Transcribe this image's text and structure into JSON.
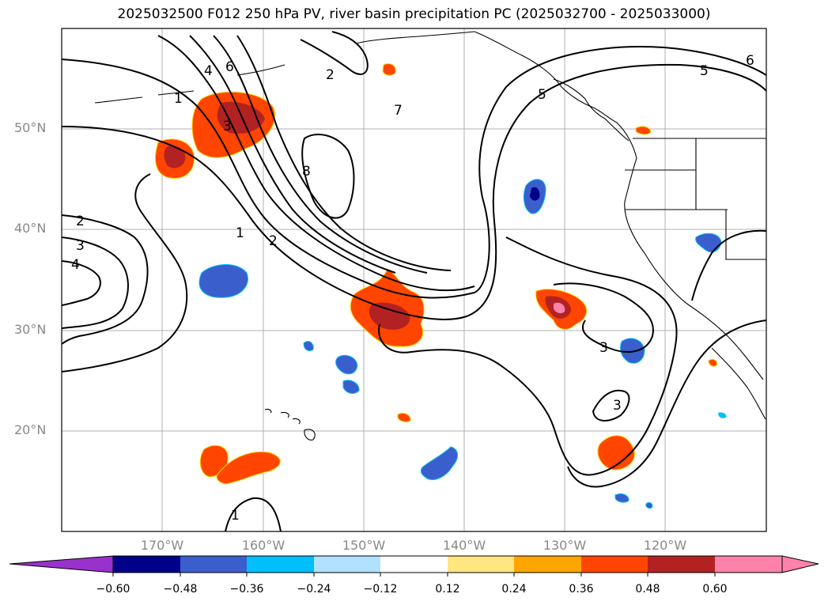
{
  "title": "2025032500 F012 250 hPa PV, river basin precipitation PC (2025032700 - 2025033000)",
  "lat_labels": [
    "50°N",
    "40°N",
    "30°N",
    "20°N"
  ],
  "lon_labels": [
    "170°W",
    "160°W",
    "150°W",
    "140°W",
    "130°W",
    "120°W"
  ],
  "contour_labels": [
    "1",
    "2",
    "3",
    "4",
    "5",
    "6",
    "7",
    "8",
    "1",
    "2",
    "3",
    "4",
    "1",
    "2",
    "3",
    "3",
    "5",
    "6"
  ],
  "colorbar": {
    "ticks": [
      "−0.60",
      "−0.48",
      "−0.36",
      "−0.24",
      "−0.12",
      "0.12",
      "0.24",
      "0.36",
      "0.48",
      "0.60"
    ],
    "colors": [
      "#9932cc",
      "#00008b",
      "#3a5fcd",
      "#00bfff",
      "#b0e2ff",
      "#ffffff",
      "#ffe680",
      "#ffa500",
      "#ff4500",
      "#b22222",
      "#ff82ab",
      "#ff82ab"
    ]
  },
  "colors": {
    "grid": "#b0b0b0",
    "contour": "#000000",
    "coast": "#000000",
    "tick_label": "#888888"
  }
}
